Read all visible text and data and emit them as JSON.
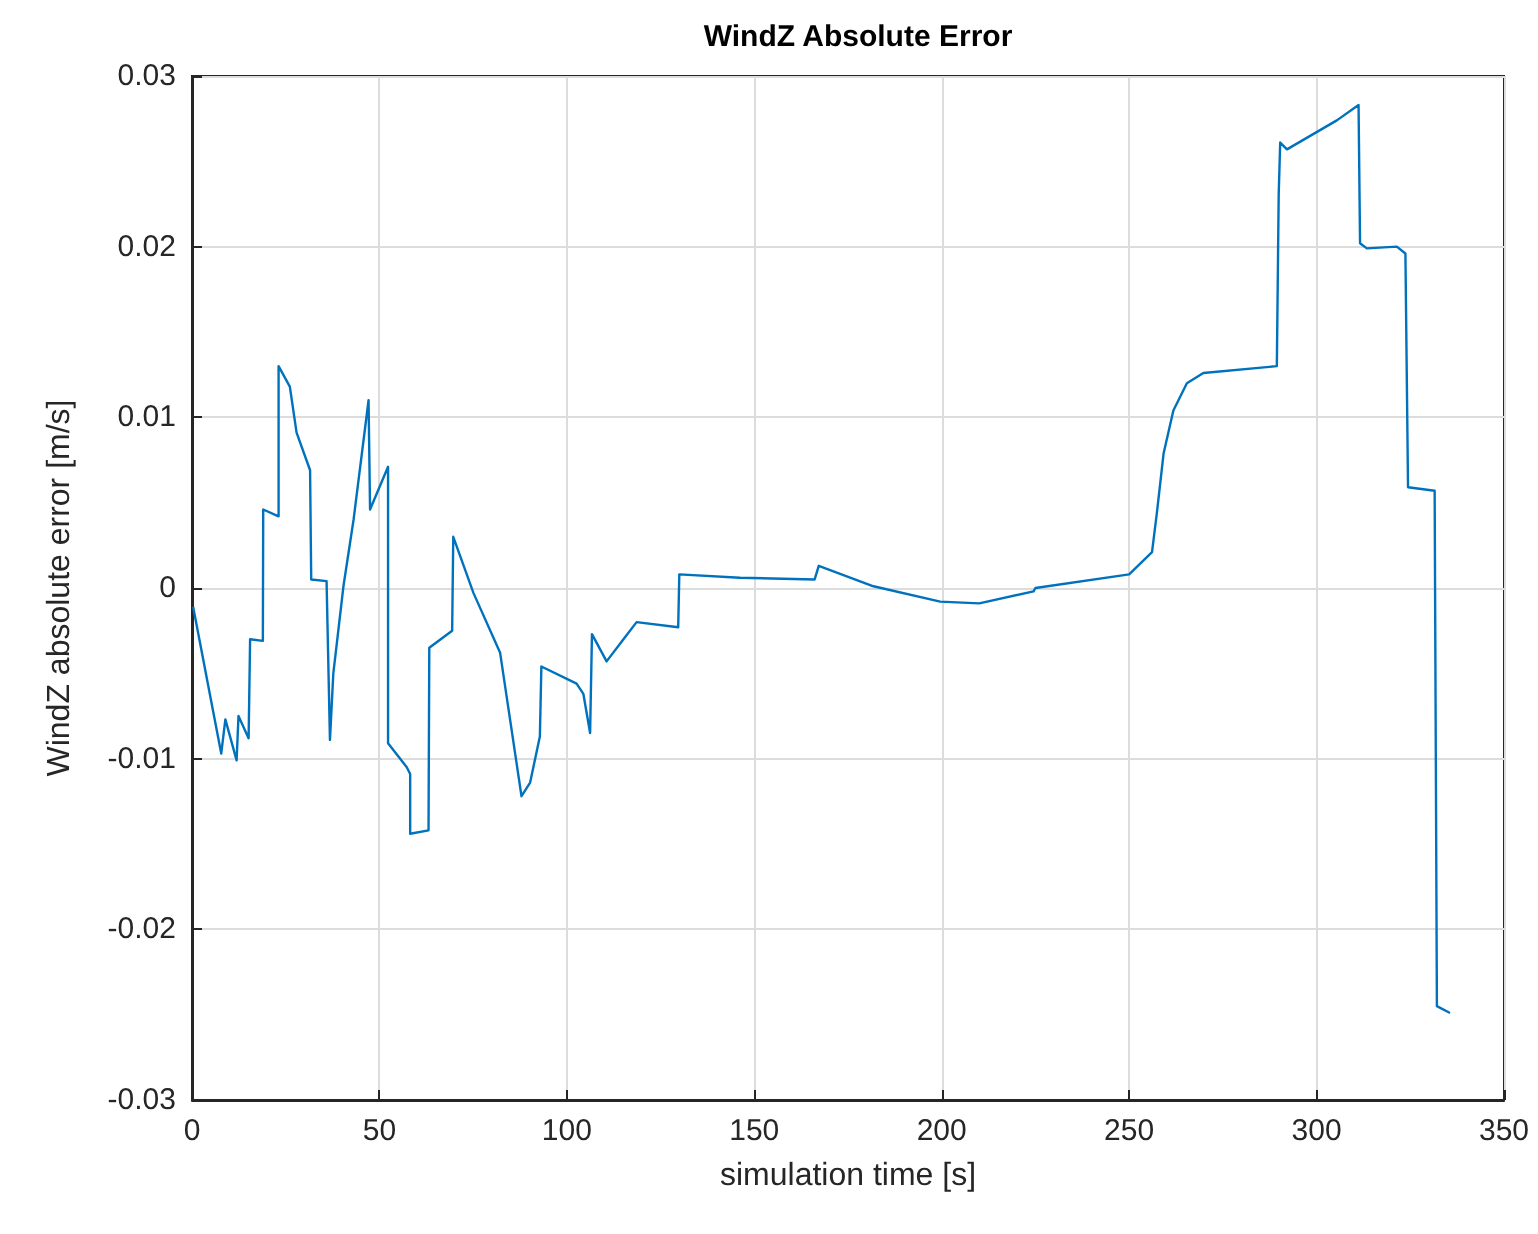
{
  "chart_data": {
    "type": "line",
    "title": "WindZ Absolute Error",
    "xlabel": "simulation time [s]",
    "ylabel": "WindZ absolute error [m/s]",
    "xlim": [
      0,
      350
    ],
    "xticks": [
      0,
      50,
      100,
      150,
      200,
      250,
      300,
      350
    ],
    "ylim": [
      -0.03,
      0.03
    ],
    "yticks": [
      -0.03,
      -0.02,
      -0.01,
      0,
      0.01,
      0.02,
      0.03
    ],
    "grid": true,
    "series": [
      {
        "color": "#0072bd",
        "x": [
          0.3,
          5.7,
          7.8,
          8.9,
          11.9,
          12.4,
          15.1,
          15.5,
          18.9,
          19.0,
          23.1,
          23.1,
          26.1,
          27.9,
          31.5,
          31.8,
          35.9,
          36.8,
          37.7,
          40.4,
          43.1,
          47.1,
          47.5,
          52.3,
          52.3,
          57.3,
          58.2,
          58.2,
          63.1,
          63.3,
          69.4,
          69.7,
          75.1,
          82.2,
          87.9,
          90.2,
          92.8,
          93.2,
          102.6,
          104.4,
          106.2,
          106.7,
          110.6,
          115.1,
          118.6,
          129.7,
          130.0,
          146.2,
          166.1,
          167.2,
          181.8,
          199.6,
          210,
          224.5,
          225,
          250,
          256.1,
          257.4,
          259.2,
          261.8,
          265.4,
          269.8,
          289.4,
          289.9,
          290.3,
          292.1,
          305.4,
          311.2,
          311.6,
          313.4,
          321.4,
          323.7,
          324.4,
          331.5,
          332.1,
          335.6
        ],
        "values": [
          -0.0011,
          -0.0073,
          -0.0097,
          -0.0077,
          -0.0101,
          -0.0075,
          -0.0088,
          -0.003,
          -0.0031,
          0.0046,
          0.0042,
          0.013,
          0.0118,
          0.0091,
          0.0069,
          0.0005,
          0.0004,
          -0.0089,
          -0.005,
          0.0001,
          0.004,
          0.011,
          0.0046,
          0.0071,
          -0.0091,
          -0.0105,
          -0.0109,
          -0.0144,
          -0.0142,
          -0.0035,
          -0.0025,
          0.003,
          -0.0003,
          -0.0038,
          -0.0122,
          -0.0114,
          -0.0087,
          -0.0046,
          -0.0056,
          -0.0062,
          -0.0085,
          -0.0027,
          -0.0043,
          -0.003,
          -0.002,
          -0.0023,
          0.0008,
          0.0006,
          0.0005,
          0.0013,
          0.0001,
          -0.0008,
          -0.0009,
          -0.0002,
          0,
          0.0008,
          0.0021,
          0.0044,
          0.0079,
          0.0104,
          0.012,
          0.0126,
          0.013,
          0.0231,
          0.0261,
          0.0257,
          0.0274,
          0.0283,
          0.0202,
          0.0199,
          0.02,
          0.0196,
          0.0059,
          0.0057,
          -0.0245,
          -0.0249
        ]
      }
    ]
  }
}
